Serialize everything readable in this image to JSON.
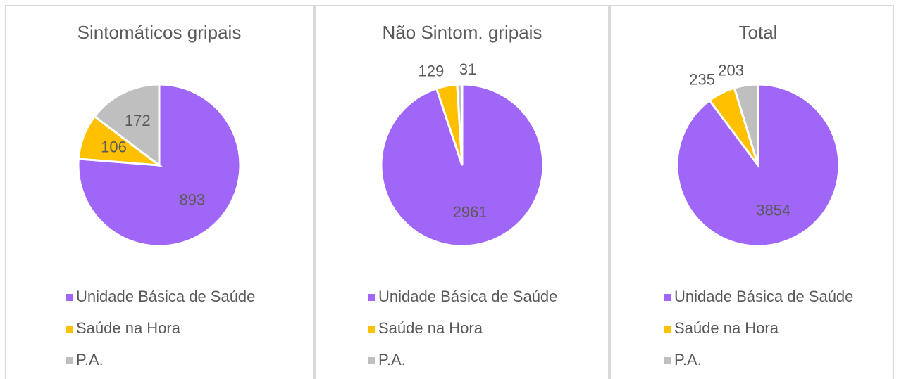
{
  "chart_data": [
    {
      "type": "pie",
      "title": "Sintomáticos gripais",
      "categories": [
        "Unidade Básica de Saúde",
        "Saúde na Hora",
        "P.A."
      ],
      "values": [
        893,
        106,
        172
      ],
      "colors": [
        "#9f66f7",
        "#ffc000",
        "#bfbfbf"
      ],
      "legend": "bottom"
    },
    {
      "type": "pie",
      "title": "Não Sintom. gripais",
      "categories": [
        "Unidade Básica de Saúde",
        "Saúde na Hora",
        "P.A."
      ],
      "values": [
        2961,
        129,
        31
      ],
      "colors": [
        "#9f66f7",
        "#ffc000",
        "#bfbfbf"
      ],
      "legend": "bottom"
    },
    {
      "type": "pie",
      "title": "Total",
      "categories": [
        "Unidade Básica de Saúde",
        "Saúde na Hora",
        "P.A."
      ],
      "values": [
        3854,
        235,
        203
      ],
      "colors": [
        "#9f66f7",
        "#ffc000",
        "#bfbfbf"
      ],
      "legend": "bottom"
    }
  ]
}
